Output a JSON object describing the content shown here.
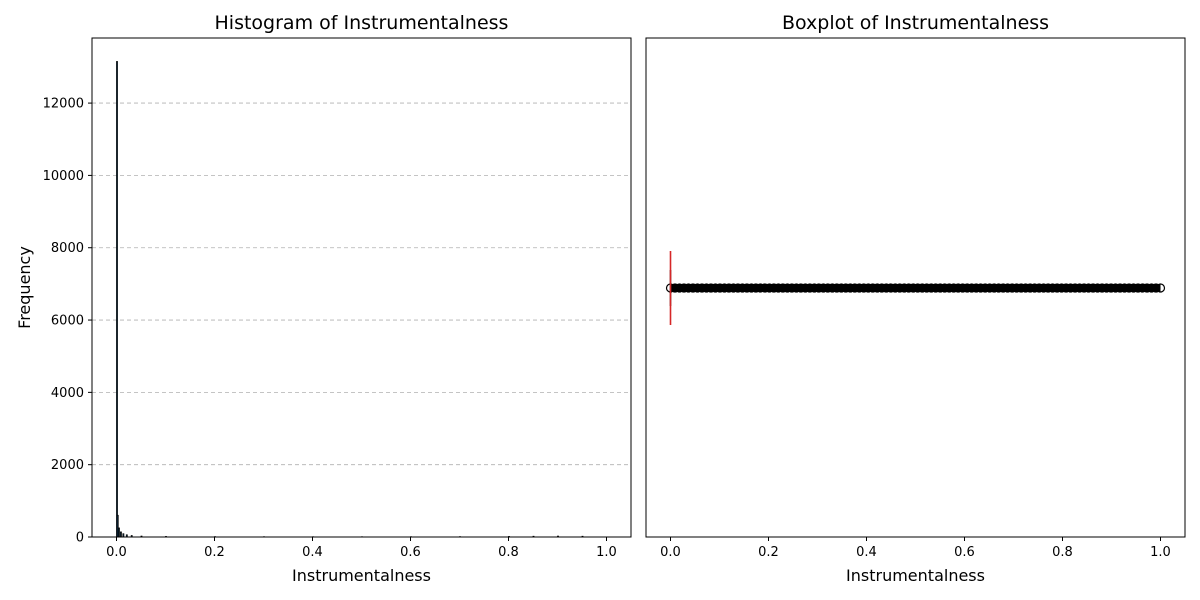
{
  "chart_data": [
    {
      "type": "histogram",
      "title": "Histogram of Instrumentalness",
      "xlabel": "Instrumentalness",
      "ylabel": "Frequency",
      "xlim": [
        -0.05,
        1.05
      ],
      "ylim": [
        0,
        13800
      ],
      "x_ticks": [
        0.0,
        0.2,
        0.4,
        0.6,
        0.8,
        1.0
      ],
      "x_tick_labels": [
        "0.0",
        "0.2",
        "0.4",
        "0.6",
        "0.8",
        "1.0"
      ],
      "y_ticks": [
        0,
        2000,
        4000,
        6000,
        8000,
        10000,
        12000
      ],
      "y_tick_labels": [
        "0",
        "2000",
        "4000",
        "6000",
        "8000",
        "10000",
        "12000"
      ],
      "grid": "y-dashed",
      "bar_color": "#1f77b4",
      "edge_color": "#000000",
      "bins": [
        {
          "x": 0.0,
          "count": 13150
        },
        {
          "x": 0.0015,
          "count": 600
        },
        {
          "x": 0.004,
          "count": 250
        },
        {
          "x": 0.008,
          "count": 140
        },
        {
          "x": 0.013,
          "count": 90
        },
        {
          "x": 0.02,
          "count": 60
        },
        {
          "x": 0.03,
          "count": 40
        },
        {
          "x": 0.05,
          "count": 25
        },
        {
          "x": 0.1,
          "count": 15
        },
        {
          "x": 0.2,
          "count": 10
        },
        {
          "x": 0.3,
          "count": 8
        },
        {
          "x": 0.4,
          "count": 7
        },
        {
          "x": 0.5,
          "count": 7
        },
        {
          "x": 0.6,
          "count": 8
        },
        {
          "x": 0.7,
          "count": 10
        },
        {
          "x": 0.8,
          "count": 15
        },
        {
          "x": 0.85,
          "count": 20
        },
        {
          "x": 0.9,
          "count": 25
        },
        {
          "x": 0.95,
          "count": 20
        }
      ]
    },
    {
      "type": "boxplot",
      "title": "Boxplot of Instrumentalness",
      "xlabel": "Instrumentalness",
      "orientation": "horizontal",
      "xlim": [
        -0.05,
        1.05
      ],
      "x_ticks": [
        0.0,
        0.2,
        0.4,
        0.6,
        0.8,
        1.0
      ],
      "x_tick_labels": [
        "0.0",
        "0.2",
        "0.4",
        "0.6",
        "0.8",
        "1.0"
      ],
      "median": 0.0,
      "q1": 0.0,
      "q3": 0.0,
      "whisker_low": 0.0,
      "whisker_high": 0.0,
      "outlier_range": [
        0.0,
        1.0
      ],
      "median_color": "#d62728",
      "outlier_color": "#000000"
    }
  ]
}
